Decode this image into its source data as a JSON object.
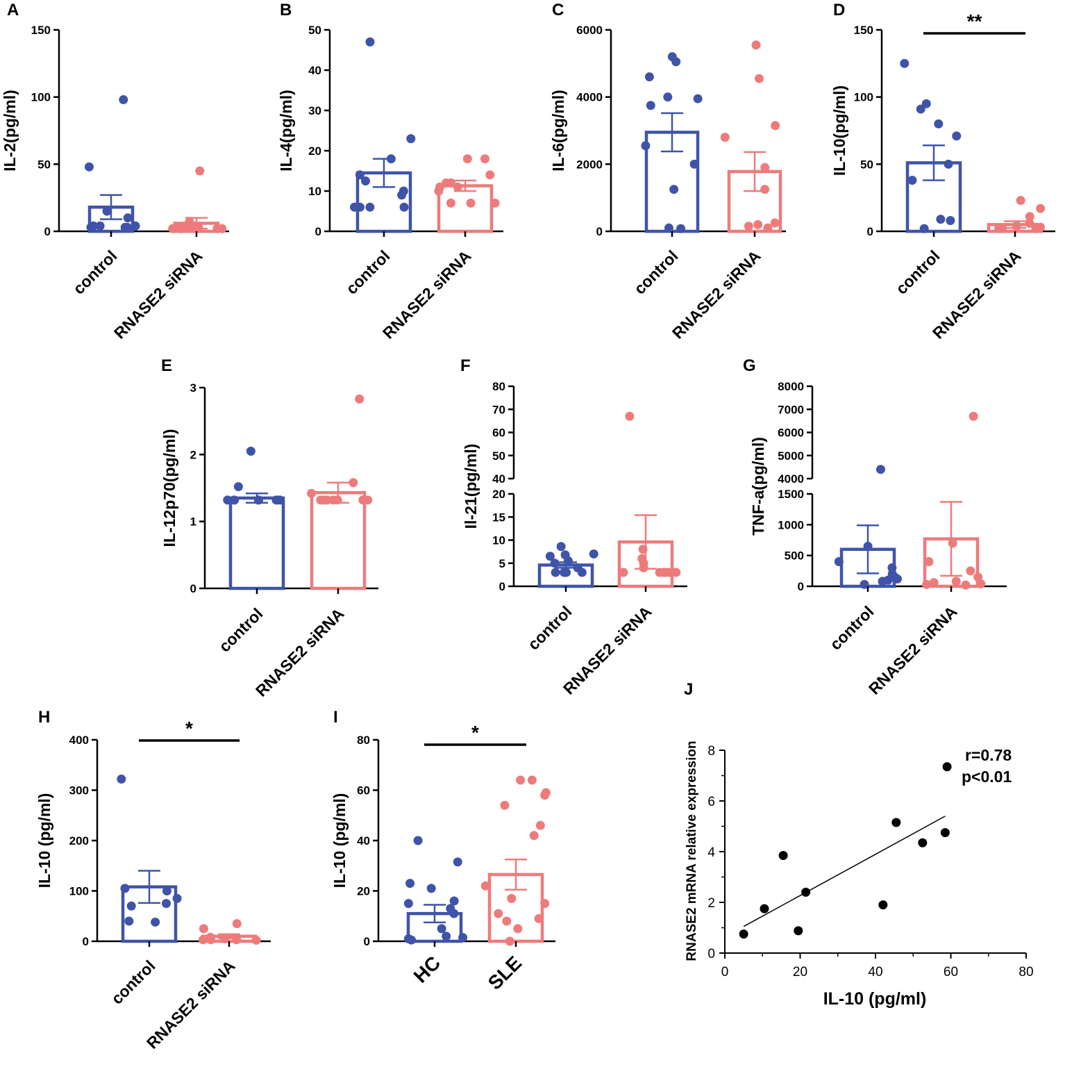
{
  "colors": {
    "control": "#3F54A8",
    "treatment": "#EE7B7B",
    "axis": "#000000",
    "dot_scatter": "#000000"
  },
  "panels": [
    {
      "label": "A",
      "ylabel": "IL-2(pg/ml)",
      "ylim": [
        0,
        150
      ],
      "yticks": [
        "0",
        "50",
        "100",
        "150"
      ],
      "categories": [
        "control",
        "RNASE2 siRNA"
      ],
      "series": [
        {
          "name": "control",
          "mean": 18,
          "sem": 9,
          "points": [
            98,
            48,
            15,
            10,
            4,
            3,
            3,
            4,
            4,
            3
          ]
        },
        {
          "name": "RNASE2 siRNA",
          "mean": 6,
          "sem": 4,
          "points": [
            45,
            7,
            4,
            3,
            3,
            2,
            2,
            2,
            3,
            2
          ]
        }
      ],
      "significance": ""
    },
    {
      "label": "B",
      "ylabel": "IL-4(pg/ml)",
      "ylim": [
        0,
        50
      ],
      "yticks": [
        "0",
        "10",
        "20",
        "30",
        "40",
        "50"
      ],
      "categories": [
        "control",
        "RNASE2 siRNA"
      ],
      "series": [
        {
          "name": "control",
          "mean": 14.5,
          "sem": 3.5,
          "points": [
            47,
            23,
            18,
            14,
            12.5,
            10,
            9,
            6,
            6,
            6,
            6
          ]
        },
        {
          "name": "RNASE2 siRNA",
          "mean": 11.3,
          "sem": 1.3,
          "points": [
            18,
            18,
            14,
            12,
            12,
            11,
            11,
            10,
            7,
            7,
            7
          ]
        }
      ],
      "significance": ""
    },
    {
      "label": "C",
      "ylabel": "IL-6(pg/ml)",
      "ylim": [
        0,
        6000
      ],
      "yticks": [
        "0",
        "2000",
        "4000",
        "6000"
      ],
      "categories": [
        "control",
        "RNASE2 siRNA"
      ],
      "series": [
        {
          "name": "control",
          "mean": 2950,
          "sem": 570,
          "points": [
            5200,
            5050,
            4600,
            4000,
            3950,
            3750,
            2550,
            2000,
            1250,
            100,
            80
          ]
        },
        {
          "name": "RNASE2 siRNA",
          "mean": 1780,
          "sem": 580,
          "points": [
            5550,
            4550,
            3150,
            2800,
            1900,
            1250,
            250,
            200,
            150,
            100
          ]
        }
      ],
      "significance": ""
    },
    {
      "label": "D",
      "ylabel": "IL-10(pg/ml)",
      "ylim": [
        0,
        150
      ],
      "yticks": [
        "0",
        "50",
        "100",
        "150"
      ],
      "categories": [
        "control",
        "RNASE2 siRNA"
      ],
      "series": [
        {
          "name": "control",
          "mean": 51,
          "sem": 13,
          "points": [
            125,
            95,
            91,
            80,
            71,
            50,
            38,
            9,
            8,
            2
          ]
        },
        {
          "name": "RNASE2 siRNA",
          "mean": 5,
          "sem": 2.5,
          "points": [
            23,
            17,
            11,
            6,
            4,
            3,
            3,
            2,
            2,
            2
          ]
        }
      ],
      "significance": "**"
    },
    {
      "label": "E",
      "ylabel": "IL-12p70(pg/ml)",
      "ylim": [
        0,
        3
      ],
      "yticks": [
        "0",
        "1",
        "2",
        "3"
      ],
      "categories": [
        "control",
        "RNASE2 siRNA"
      ],
      "series": [
        {
          "name": "control",
          "mean": 1.35,
          "sem": 0.07,
          "points": [
            2.05,
            1.52,
            1.32,
            1.32,
            1.32,
            1.32,
            1.32,
            1.32,
            1.32,
            1.32
          ]
        },
        {
          "name": "RNASE2 siRNA",
          "mean": 1.43,
          "sem": 0.15,
          "points": [
            2.83,
            1.58,
            1.42,
            1.32,
            1.32,
            1.32,
            1.32,
            1.32,
            1.32,
            1.32
          ]
        }
      ],
      "significance": ""
    },
    {
      "label": "F",
      "ylabel": "Il-21(pg/ml)",
      "yticks_lower": [
        "0",
        "5",
        "10",
        "15",
        "20"
      ],
      "yticks_upper": [
        "40",
        "50",
        "60",
        "70",
        "80"
      ],
      "lower_range": [
        0,
        20
      ],
      "upper_range": [
        40,
        80
      ],
      "categories": [
        "control",
        "RNASE2 siRNA"
      ],
      "series": [
        {
          "name": "control",
          "mean": 4.6,
          "sem": 0.6,
          "points": [
            8.6,
            7,
            6.8,
            6.5,
            5.5,
            5,
            4,
            3,
            3,
            3,
            3
          ]
        },
        {
          "name": "RNASE2 siRNA",
          "mean": 9.6,
          "sem": 5.8,
          "points": [
            67,
            8,
            6,
            5,
            4,
            3,
            3,
            3,
            3,
            3,
            3
          ]
        }
      ],
      "significance": ""
    },
    {
      "label": "G",
      "ylabel": "TNF-a(pg/ml)",
      "yticks_lower": [
        "0",
        "500",
        "1000",
        "1500"
      ],
      "yticks_upper": [
        "4000",
        "5000",
        "6000",
        "7000",
        "8000"
      ],
      "lower_range": [
        0,
        1500
      ],
      "upper_range": [
        4000,
        8000
      ],
      "categories": [
        "control",
        "RNASE2 siRNA"
      ],
      "series": [
        {
          "name": "control",
          "mean": 600,
          "sem": 390,
          "points": [
            4400,
            650,
            400,
            300,
            200,
            150,
            120,
            100,
            80,
            30
          ]
        },
        {
          "name": "RNASE2 siRNA",
          "mean": 770,
          "sem": 600,
          "points": [
            6700,
            700,
            400,
            250,
            150,
            80,
            60,
            40,
            30,
            20
          ]
        }
      ],
      "significance": ""
    },
    {
      "label": "H",
      "ylabel": "IL-10 (pg/ml)",
      "ylim": [
        0,
        400
      ],
      "yticks": [
        "0",
        "100",
        "200",
        "300",
        "400"
      ],
      "categories": [
        "control",
        "RNASE2 siRNA"
      ],
      "series": [
        {
          "name": "control",
          "mean": 108,
          "sem": 32,
          "points": [
            322,
            105,
            100,
            85,
            75,
            70,
            40,
            38
          ]
        },
        {
          "name": "RNASE2 siRNA",
          "mean": 10,
          "sem": 4,
          "points": [
            35,
            25,
            8,
            5,
            3,
            3,
            3,
            2
          ]
        }
      ],
      "significance": "*"
    },
    {
      "label": "I",
      "ylabel": "IL-10 (pg/ml)",
      "ylim": [
        0,
        80
      ],
      "yticks": [
        "0",
        "20",
        "40",
        "60",
        "80"
      ],
      "categories": [
        "HC",
        "SLE"
      ],
      "series": [
        {
          "name": "HC",
          "mean": 11,
          "sem": 3.5,
          "points": [
            40,
            31.5,
            23,
            21,
            16,
            15,
            13,
            11,
            5,
            2,
            1.5,
            1,
            0.5
          ]
        },
        {
          "name": "SLE",
          "mean": 26.5,
          "sem": 6,
          "points": [
            64,
            64,
            59,
            58,
            54,
            46,
            42,
            22,
            17,
            15,
            11,
            9,
            8,
            5,
            0
          ]
        }
      ],
      "significance": "*"
    }
  ],
  "chart_data": {
    "type": "scatter",
    "label": "J",
    "xlabel": "IL-10 (pg/ml)",
    "ylabel": "RNASE2 mRNA relative expression",
    "xlim": [
      0,
      80
    ],
    "ylim": [
      0,
      8
    ],
    "xticks": [
      "0",
      "20",
      "40",
      "60",
      "80"
    ],
    "yticks": [
      "0",
      "2",
      "4",
      "6",
      "8"
    ],
    "points": [
      [
        5,
        0.75
      ],
      [
        10.5,
        1.75
      ],
      [
        15.5,
        3.85
      ],
      [
        19.5,
        0.88
      ],
      [
        21.5,
        2.4
      ],
      [
        42,
        1.9
      ],
      [
        45.5,
        5.15
      ],
      [
        52.5,
        4.35
      ],
      [
        58.5,
        4.75
      ],
      [
        59,
        7.35
      ]
    ],
    "fit": {
      "x1": 5,
      "y1": 1.05,
      "x2": 58.5,
      "y2": 5.4
    },
    "annotation": {
      "r": "r=0.78",
      "p": "p<0.01"
    }
  }
}
